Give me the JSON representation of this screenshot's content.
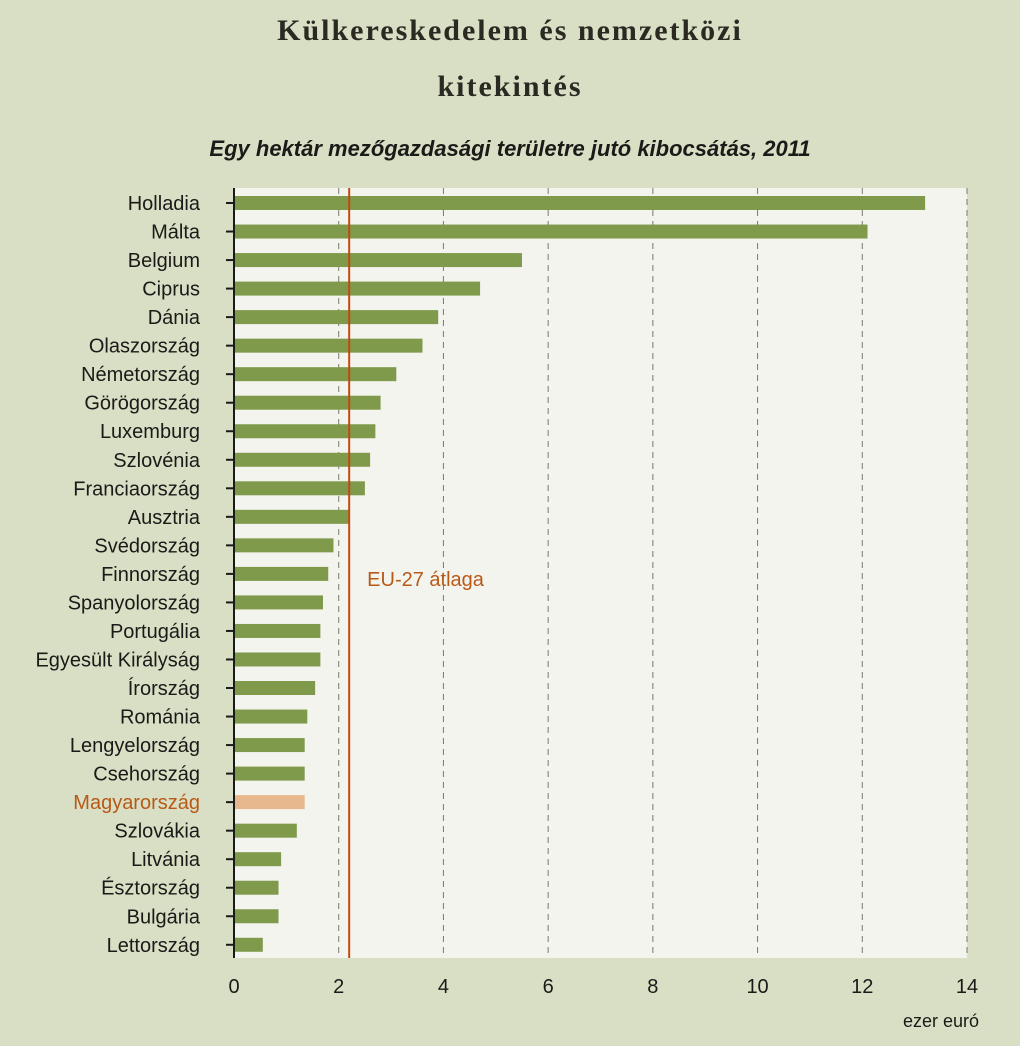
{
  "header": {
    "title_line1": "Külkereskedelem és nemzetközi",
    "title_line2": "kitekintés"
  },
  "colors": {
    "bar": "#7f9a4b",
    "highlight_bar": "#e7b88e",
    "highlight_text": "#b75a17",
    "average_line": "#c04a10",
    "plot_background": "#f4f4ef",
    "grid": "#7a7a70"
  },
  "chart_data": {
    "type": "bar",
    "orientation": "horizontal",
    "title": "Egy hektár mezőgazdasági területre jutó kibocsátás, 2011",
    "xlabel": "ezer euró",
    "xlim": [
      0,
      14
    ],
    "xticks": [
      0,
      2,
      4,
      6,
      8,
      10,
      12,
      14
    ],
    "grid": "vertical dashed",
    "categories": [
      "Holladia",
      "Málta",
      "Belgium",
      "Ciprus",
      "Dánia",
      "Olaszország",
      "Németország",
      "Görögország",
      "Luxemburg",
      "Szlovénia",
      "Franciaország",
      "Ausztria",
      "Svédország",
      "Finnország",
      "Spanyolország",
      "Portugália",
      "Egyesült Királyság",
      "Írország",
      "Románia",
      "Lengyelország",
      "Csehország",
      "Magyarország",
      "Szlovákia",
      "Litvánia",
      "Észtország",
      "Bulgária",
      "Lettország"
    ],
    "values": [
      13.2,
      12.1,
      5.5,
      4.7,
      3.9,
      3.6,
      3.1,
      2.8,
      2.7,
      2.6,
      2.5,
      2.2,
      1.9,
      1.8,
      1.7,
      1.65,
      1.65,
      1.55,
      1.4,
      1.35,
      1.35,
      1.35,
      1.2,
      0.9,
      0.85,
      0.85,
      0.55
    ],
    "highlight": "Magyarország",
    "reference_line": {
      "label": "EU-27 átlaga",
      "value": 2.2
    }
  }
}
